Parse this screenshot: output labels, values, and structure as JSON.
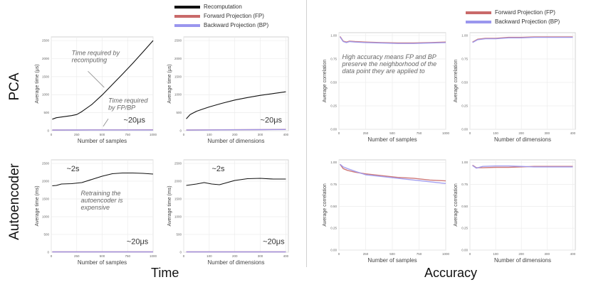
{
  "figure": {
    "section_titles": [
      "Time",
      "Accuracy"
    ],
    "row_labels": [
      "PCA",
      "Autoencoder"
    ],
    "legend_time": [
      {
        "label": "Recomputation",
        "color": "#111111"
      },
      {
        "label": "Forward Projection (FP)",
        "color": "#c96a6a"
      },
      {
        "label": "Backward Projection (BP)",
        "color": "#9a96ee"
      }
    ],
    "legend_accuracy": [
      {
        "label": "Forward Projection (FP)",
        "color": "#c96a6a"
      },
      {
        "label": "Backward Projection (BP)",
        "color": "#9a96ee"
      }
    ]
  },
  "chart_data": [
    {
      "type": "line",
      "id": "pca-time-samples",
      "xlabel": "Number of samples",
      "ylabel": "Average time (μs)",
      "xlim": [
        0,
        1000
      ],
      "ylim": [
        0,
        2600
      ],
      "xticks": [
        0,
        250,
        500,
        750,
        1000
      ],
      "yticks": [
        0,
        500,
        1000,
        1500,
        2000,
        2500
      ],
      "series": [
        {
          "name": "Recomputation",
          "color": "#111111",
          "x": [
            10,
            50,
            100,
            150,
            200,
            250,
            300,
            400,
            500,
            600,
            700,
            800,
            900,
            1000
          ],
          "y": [
            320,
            360,
            380,
            400,
            420,
            450,
            530,
            730,
            990,
            1280,
            1570,
            1870,
            2180,
            2500
          ]
        },
        {
          "name": "Forward Projection (FP)",
          "color": "#c96a6a",
          "x": [
            10,
            250,
            500,
            750,
            1000
          ],
          "y": [
            20,
            22,
            24,
            24,
            25
          ]
        },
        {
          "name": "Backward Projection (BP)",
          "color": "#9a96ee",
          "x": [
            10,
            250,
            500,
            750,
            1000
          ],
          "y": [
            18,
            20,
            21,
            22,
            22
          ]
        }
      ],
      "annotations": [
        {
          "text": "Time required by recomputing",
          "x": 200,
          "y": 2100
        },
        {
          "text": "Time required by FP/BP",
          "x": 560,
          "y": 780
        },
        {
          "text": "~20μs",
          "x": 710,
          "y": 230
        }
      ]
    },
    {
      "type": "line",
      "id": "pca-time-dims",
      "xlabel": "Number of dimensions",
      "ylabel": "Average time (μs)",
      "xlim": [
        0,
        410
      ],
      "ylim": [
        0,
        2600
      ],
      "xticks": [
        0,
        100,
        200,
        300,
        400
      ],
      "yticks": [
        0,
        500,
        1000,
        1500,
        2000,
        2500
      ],
      "series": [
        {
          "name": "Recomputation",
          "color": "#111111",
          "x": [
            10,
            25,
            50,
            75,
            100,
            150,
            200,
            250,
            300,
            350,
            400
          ],
          "y": [
            330,
            450,
            540,
            600,
            660,
            760,
            850,
            920,
            980,
            1030,
            1080
          ]
        },
        {
          "name": "Forward Projection (FP)",
          "color": "#c96a6a",
          "x": [
            10,
            100,
            200,
            300,
            400
          ],
          "y": [
            20,
            24,
            28,
            32,
            38
          ]
        },
        {
          "name": "Backward Projection (BP)",
          "color": "#9a96ee",
          "x": [
            10,
            100,
            200,
            300,
            400
          ],
          "y": [
            18,
            22,
            26,
            30,
            34
          ]
        }
      ],
      "annotations": [
        {
          "text": "~20μs",
          "x": 300,
          "y": 230
        }
      ]
    },
    {
      "type": "line",
      "id": "pca-acc-samples",
      "xlabel": "Number of samples",
      "ylabel": "Average correlation",
      "xlim": [
        0,
        1000
      ],
      "ylim": [
        0,
        1.03
      ],
      "xticks": [
        0,
        250,
        500,
        750,
        1000
      ],
      "yticks": [
        0.0,
        0.25,
        0.5,
        0.75,
        1.0
      ],
      "series": [
        {
          "name": "Forward Projection (FP)",
          "color": "#c96a6a",
          "x": [
            10,
            40,
            70,
            100,
            150,
            250,
            400,
            550,
            700,
            850,
            1000
          ],
          "y": [
            0.99,
            0.94,
            0.93,
            0.94,
            0.935,
            0.93,
            0.925,
            0.92,
            0.92,
            0.925,
            0.93
          ]
        },
        {
          "name": "Backward Projection (BP)",
          "color": "#9a96ee",
          "x": [
            10,
            40,
            70,
            100,
            150,
            250,
            400,
            550,
            700,
            850,
            1000
          ],
          "y": [
            0.985,
            0.935,
            0.925,
            0.935,
            0.93,
            0.925,
            0.92,
            0.915,
            0.915,
            0.92,
            0.925
          ]
        }
      ],
      "annotations": [
        {
          "text": "High accuracy means FP and BP preserve the neighborhood of the data point they are applied to",
          "x": 30,
          "y": 0.75
        }
      ]
    },
    {
      "type": "line",
      "id": "pca-acc-dims",
      "xlabel": "Number of dimensions",
      "ylabel": "Average correlation",
      "xlim": [
        0,
        410
      ],
      "ylim": [
        0,
        1.03
      ],
      "xticks": [
        0,
        100,
        200,
        300,
        400
      ],
      "yticks": [
        0.0,
        0.25,
        0.5,
        0.75,
        1.0
      ],
      "series": [
        {
          "name": "Forward Projection (FP)",
          "color": "#c96a6a",
          "x": [
            10,
            30,
            60,
            100,
            150,
            200,
            250,
            300,
            350,
            400
          ],
          "y": [
            0.93,
            0.96,
            0.97,
            0.97,
            0.98,
            0.98,
            0.985,
            0.985,
            0.985,
            0.985
          ]
        },
        {
          "name": "Backward Projection (BP)",
          "color": "#9a96ee",
          "x": [
            10,
            30,
            60,
            100,
            150,
            200,
            250,
            300,
            350,
            400
          ],
          "y": [
            0.925,
            0.955,
            0.965,
            0.965,
            0.975,
            0.975,
            0.98,
            0.98,
            0.98,
            0.98
          ]
        }
      ]
    },
    {
      "type": "line",
      "id": "ae-time-samples",
      "xlabel": "Number of samples",
      "ylabel": "Average time (ms)",
      "xlim": [
        0,
        1000
      ],
      "ylim": [
        0,
        2600
      ],
      "xticks": [
        0,
        250,
        500,
        750,
        1000
      ],
      "yticks": [
        0,
        500,
        1000,
        1500,
        2000,
        2500
      ],
      "series": [
        {
          "name": "Recomputation",
          "color": "#111111",
          "x": [
            10,
            50,
            100,
            200,
            300,
            400,
            500,
            600,
            700,
            800,
            900,
            1000
          ],
          "y": [
            1870,
            1880,
            1920,
            1930,
            1960,
            2050,
            2140,
            2210,
            2230,
            2230,
            2220,
            2200
          ]
        },
        {
          "name": "Forward Projection (FP)",
          "color": "#c96a6a",
          "x": [
            10,
            500,
            1000
          ],
          "y": [
            10,
            10,
            10
          ]
        },
        {
          "name": "Backward Projection (BP)",
          "color": "#9a96ee",
          "x": [
            10,
            500,
            1000
          ],
          "y": [
            8,
            8,
            8
          ]
        }
      ],
      "annotations": [
        {
          "text": "~2s",
          "x": 150,
          "y": 2280
        },
        {
          "text": "Retraining the autoencoder is expensive",
          "x": 290,
          "y": 1600
        },
        {
          "text": "~20μs",
          "x": 740,
          "y": 230
        }
      ]
    },
    {
      "type": "line",
      "id": "ae-time-dims",
      "xlabel": "Number of dimensions",
      "ylabel": "Average time (ms)",
      "xlim": [
        0,
        410
      ],
      "ylim": [
        0,
        2600
      ],
      "xticks": [
        0,
        100,
        200,
        300,
        400
      ],
      "yticks": [
        0,
        500,
        1000,
        1500,
        2000,
        2500
      ],
      "series": [
        {
          "name": "Recomputation",
          "color": "#111111",
          "x": [
            10,
            50,
            80,
            110,
            140,
            170,
            200,
            250,
            300,
            350,
            400
          ],
          "y": [
            1880,
            1920,
            1960,
            1920,
            1900,
            1960,
            2020,
            2070,
            2080,
            2060,
            2060
          ]
        },
        {
          "name": "Forward Projection (FP)",
          "color": "#c96a6a",
          "x": [
            10,
            200,
            400
          ],
          "y": [
            10,
            10,
            10
          ]
        },
        {
          "name": "Backward Projection (BP)",
          "color": "#9a96ee",
          "x": [
            10,
            200,
            400
          ],
          "y": [
            8,
            8,
            8
          ]
        }
      ],
      "annotations": [
        {
          "text": "~2s",
          "x": 110,
          "y": 2280
        },
        {
          "text": "~20μs",
          "x": 310,
          "y": 230
        }
      ]
    },
    {
      "type": "line",
      "id": "ae-acc-samples",
      "xlabel": "Number of samples",
      "ylabel": "Average correlation",
      "xlim": [
        0,
        1000
      ],
      "ylim": [
        0,
        1.03
      ],
      "xticks": [
        0,
        250,
        500,
        750,
        1000
      ],
      "yticks": [
        0.0,
        0.25,
        0.5,
        0.75,
        1.0
      ],
      "series": [
        {
          "name": "Forward Projection (FP)",
          "color": "#c96a6a",
          "x": [
            10,
            40,
            80,
            150,
            250,
            400,
            550,
            700,
            850,
            1000
          ],
          "y": [
            0.98,
            0.93,
            0.91,
            0.89,
            0.87,
            0.85,
            0.83,
            0.82,
            0.8,
            0.79
          ]
        },
        {
          "name": "Backward Projection (BP)",
          "color": "#9a96ee",
          "x": [
            10,
            40,
            80,
            150,
            250,
            400,
            550,
            700,
            850,
            1000
          ],
          "y": [
            0.98,
            0.95,
            0.93,
            0.9,
            0.86,
            0.84,
            0.82,
            0.8,
            0.78,
            0.76
          ]
        }
      ]
    },
    {
      "type": "line",
      "id": "ae-acc-dims",
      "xlabel": "Number of dimensions",
      "ylabel": "Average correlation",
      "xlim": [
        0,
        410
      ],
      "ylim": [
        0,
        1.03
      ],
      "xticks": [
        0,
        100,
        200,
        300,
        400
      ],
      "yticks": [
        0.0,
        0.25,
        0.5,
        0.75,
        1.0
      ],
      "series": [
        {
          "name": "Forward Projection (FP)",
          "color": "#c96a6a",
          "x": [
            10,
            25,
            50,
            100,
            150,
            200,
            250,
            300,
            350,
            400
          ],
          "y": [
            0.97,
            0.94,
            0.94,
            0.945,
            0.945,
            0.95,
            0.955,
            0.955,
            0.955,
            0.955
          ]
        },
        {
          "name": "Backward Projection (BP)",
          "color": "#9a96ee",
          "x": [
            10,
            25,
            50,
            100,
            150,
            200,
            250,
            300,
            350,
            400
          ],
          "y": [
            0.965,
            0.935,
            0.955,
            0.96,
            0.96,
            0.955,
            0.95,
            0.95,
            0.95,
            0.95
          ]
        }
      ]
    }
  ]
}
